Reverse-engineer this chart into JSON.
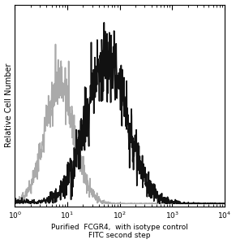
{
  "xlabel_line1": "Purified  FCGR4,  with isotype control",
  "xlabel_line2": "FITC second step",
  "ylabel": "Relative Cell Number",
  "background_color": "#ffffff",
  "isotype_color": "#aaaaaa",
  "sample_color": "#111111",
  "isotype_peak_log": 0.85,
  "isotype_sigma": 0.28,
  "isotype_amplitude": 0.88,
  "sample_peak_log": 1.75,
  "sample_sigma": 0.4,
  "sample_amplitude": 1.0,
  "noise_scale_iso": 0.06,
  "noise_scale_samp": 0.07,
  "linewidth": 1.2,
  "figsize": [
    2.91,
    3.0
  ],
  "dpi": 100
}
